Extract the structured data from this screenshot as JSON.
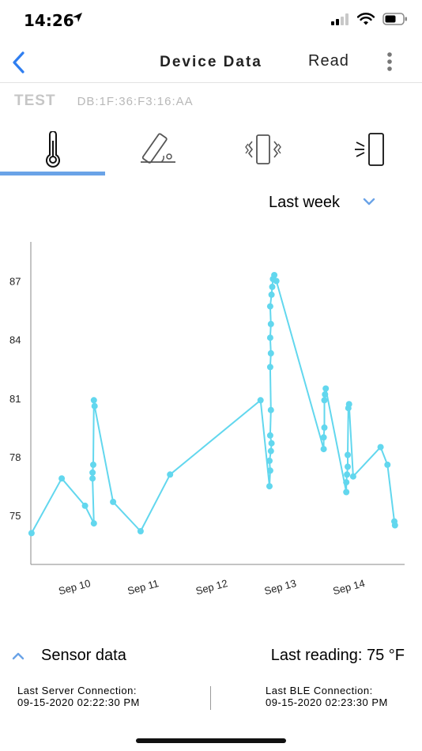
{
  "status_bar": {
    "time": "14:26"
  },
  "nav": {
    "title": "Device Data",
    "read_label": "Read"
  },
  "device": {
    "name": "TEST",
    "mac": "DB:1F:36:F3:16:AA"
  },
  "tabs": [
    {
      "name": "temperature",
      "icon": "thermometer-icon",
      "selected": true
    },
    {
      "name": "tilt",
      "icon": "tilt-icon",
      "selected": false
    },
    {
      "name": "vibration",
      "icon": "vibration-icon",
      "selected": false
    },
    {
      "name": "door",
      "icon": "door-icon",
      "selected": false
    }
  ],
  "range": {
    "label": "Last week"
  },
  "colors": {
    "accent": "#6aa3e7",
    "series": "#62d7ee",
    "axis": "#8a8a8a"
  },
  "chart_data": {
    "type": "line",
    "title": "",
    "xlabel": "",
    "ylabel": "",
    "x_ticks": [
      {
        "label": "Sep 10",
        "x": 10
      },
      {
        "label": "Sep 11",
        "x": 11
      },
      {
        "label": "Sep 12",
        "x": 12
      },
      {
        "label": "Sep 13",
        "x": 13
      },
      {
        "label": "Sep 14",
        "x": 14
      }
    ],
    "y_ticks": [
      75,
      78,
      81,
      84,
      87
    ],
    "xlim": [
      9.35,
      14.8
    ],
    "ylim": [
      72.5,
      89
    ],
    "grid": false,
    "series": [
      {
        "points": [
          [
            9.36,
            74.1
          ],
          [
            9.8,
            76.9
          ],
          [
            10.14,
            75.5
          ],
          [
            10.27,
            74.6
          ],
          [
            10.25,
            76.9
          ],
          [
            10.25,
            77.2
          ],
          [
            10.26,
            77.6
          ],
          [
            10.27,
            80.9
          ],
          [
            10.28,
            80.6
          ],
          [
            10.55,
            75.7
          ],
          [
            10.95,
            74.2
          ],
          [
            11.38,
            77.1
          ],
          [
            12.7,
            80.9
          ],
          [
            12.83,
            76.5
          ],
          [
            12.84,
            77.3
          ],
          [
            12.83,
            77.8
          ],
          [
            12.85,
            78.3
          ],
          [
            12.86,
            78.7
          ],
          [
            12.84,
            79.1
          ],
          [
            12.85,
            80.4
          ],
          [
            12.84,
            82.6
          ],
          [
            12.85,
            83.3
          ],
          [
            12.84,
            84.1
          ],
          [
            12.85,
            84.8
          ],
          [
            12.84,
            85.7
          ],
          [
            12.86,
            86.3
          ],
          [
            12.87,
            86.7
          ],
          [
            12.88,
            87.1
          ],
          [
            12.9,
            87.3
          ],
          [
            12.93,
            87.0
          ],
          [
            13.62,
            78.4
          ],
          [
            13.62,
            79.0
          ],
          [
            13.63,
            79.5
          ],
          [
            13.63,
            80.9
          ],
          [
            13.64,
            81.2
          ],
          [
            13.65,
            81.5
          ],
          [
            13.95,
            76.2
          ],
          [
            13.95,
            76.7
          ],
          [
            13.96,
            77.1
          ],
          [
            13.97,
            77.5
          ],
          [
            13.97,
            78.1
          ],
          [
            13.98,
            80.5
          ],
          [
            13.99,
            80.7
          ],
          [
            14.05,
            77.0
          ],
          [
            14.45,
            78.5
          ],
          [
            14.55,
            77.6
          ],
          [
            14.65,
            74.7
          ],
          [
            14.66,
            74.5
          ]
        ]
      }
    ]
  },
  "sensor": {
    "label": "Sensor data",
    "last_reading": "Last reading: 75 °F"
  },
  "connections": {
    "server_label": "Last Server Connection:",
    "server_time": "09-15-2020 02:22:30 PM",
    "ble_label": "Last BLE Connection:",
    "ble_time": "09-15-2020 02:23:30 PM"
  }
}
